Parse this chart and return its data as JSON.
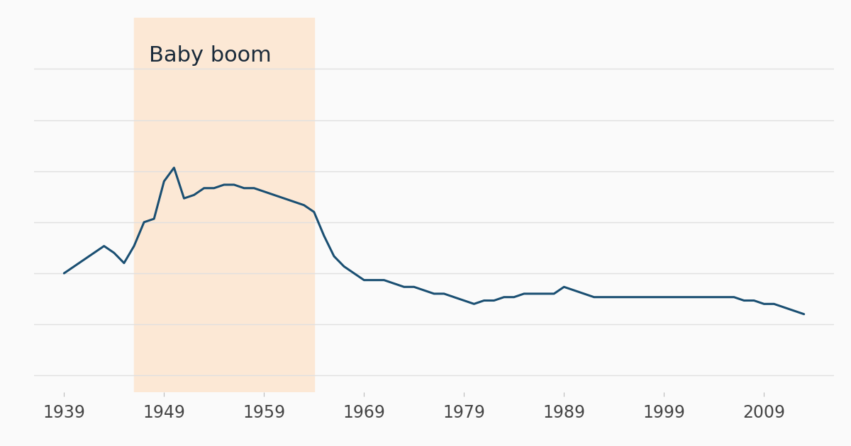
{
  "background_color": "#fafafa",
  "plot_bg_color": "#fafafa",
  "grid_color": "#e0e0e0",
  "line_color": "#1a4f72",
  "baby_boom_color": "#fce8d5",
  "baby_boom_start": 1946,
  "baby_boom_end": 1964,
  "baby_boom_label": "Baby boom",
  "baby_boom_label_color": "#1a2a3a",
  "baby_boom_label_fontsize": 22,
  "xlabel_color": "#444444",
  "xlabel_fontsize": 17,
  "xtick_labels": [
    "1939",
    "1949",
    "1959",
    "1969",
    "1979",
    "1989",
    "1999",
    "2009"
  ],
  "xtick_positions": [
    1939,
    1949,
    1959,
    1969,
    1979,
    1989,
    1999,
    2009
  ],
  "xlim": [
    1936,
    2016
  ],
  "ylim": [
    20,
    130
  ],
  "ytick_positions": [
    25,
    40,
    55,
    70,
    85,
    100,
    115
  ],
  "data_x": [
    1939,
    1940,
    1941,
    1942,
    1943,
    1944,
    1945,
    1946,
    1947,
    1948,
    1949,
    1950,
    1951,
    1952,
    1953,
    1954,
    1955,
    1956,
    1957,
    1958,
    1959,
    1960,
    1961,
    1962,
    1963,
    1964,
    1965,
    1966,
    1967,
    1968,
    1969,
    1970,
    1971,
    1972,
    1973,
    1974,
    1975,
    1976,
    1977,
    1978,
    1979,
    1980,
    1981,
    1982,
    1983,
    1984,
    1985,
    1986,
    1987,
    1988,
    1989,
    1990,
    1991,
    1992,
    1993,
    1994,
    1995,
    1996,
    1997,
    1998,
    1999,
    2000,
    2001,
    2002,
    2003,
    2004,
    2005,
    2006,
    2007,
    2008,
    2009,
    2010,
    2011,
    2012,
    2013
  ],
  "data_y": [
    55,
    57,
    59,
    61,
    63,
    61,
    58,
    63,
    70,
    71,
    82,
    86,
    77,
    78,
    80,
    80,
    81,
    81,
    80,
    80,
    79,
    78,
    77,
    76,
    75,
    73,
    66,
    60,
    57,
    55,
    53,
    53,
    53,
    52,
    51,
    51,
    50,
    49,
    49,
    48,
    47,
    46,
    47,
    47,
    48,
    48,
    49,
    49,
    49,
    49,
    51,
    50,
    49,
    48,
    48,
    48,
    48,
    48,
    48,
    48,
    48,
    48,
    48,
    48,
    48,
    48,
    48,
    48,
    47,
    47,
    46,
    46,
    45,
    44,
    43
  ],
  "line_width": 2.2,
  "figsize": [
    12.0,
    6.3
  ],
  "dpi": 100
}
